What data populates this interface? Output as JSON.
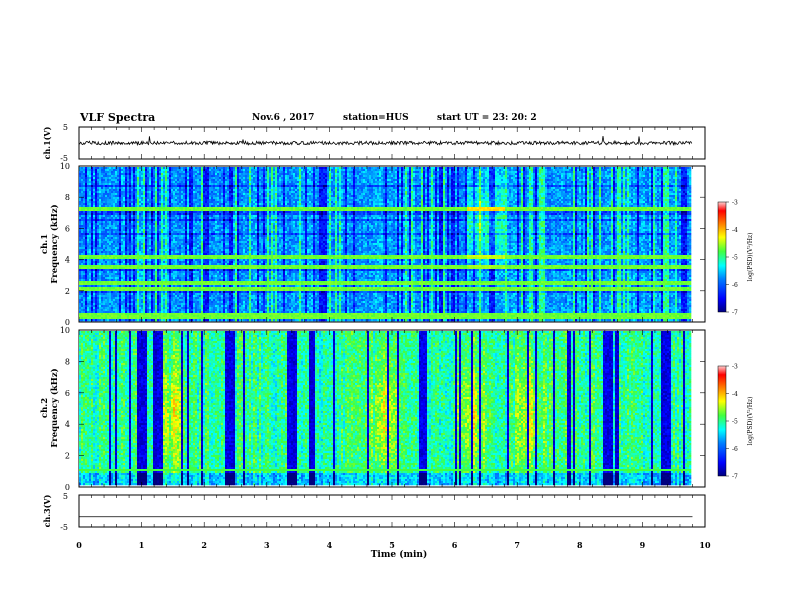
{
  "header": {
    "title": "VLF Spectra",
    "date": "Nov.6 , 2017",
    "station": "station=HUS",
    "start_ut": "start UT = 23: 20: 2"
  },
  "chart_data": [
    {
      "type": "line",
      "title": "",
      "ylabel": "ch.1(V)",
      "ylim": [
        -5,
        5
      ],
      "yticks": [
        "5",
        "-5"
      ],
      "xlim": [
        0,
        10
      ],
      "series": [
        {
          "baseline": 0
        }
      ]
    },
    {
      "type": "heatmap",
      "ylabel": "Frequency (kHz)",
      "ylabel_prefix": "ch.1",
      "ylim": [
        0,
        10
      ],
      "yticks": [
        "0",
        "2",
        "4",
        "6",
        "8",
        "10"
      ],
      "xlim": [
        0,
        9.8
      ],
      "colorbar": {
        "label": "log(PSD)(V²/Hz)",
        "range": [
          -7,
          -3
        ],
        "ticks": [
          "-3",
          "-4",
          "-5",
          "-6",
          "-7"
        ]
      },
      "seed": 11,
      "features": {
        "bands_khz": [
          2.1,
          2.5,
          3.5,
          4.2,
          7.3,
          0.2,
          0.4
        ],
        "bright_patch_min": [
          6.2,
          6.8
        ]
      }
    },
    {
      "type": "heatmap",
      "ylabel": "Frequency (kHz)",
      "ylabel_prefix": "ch.2",
      "ylim": [
        0,
        10
      ],
      "yticks": [
        "0",
        "2",
        "4",
        "6",
        "8",
        "10"
      ],
      "xlim": [
        0,
        9.8
      ],
      "colorbar": {
        "label": "log(PSD)(V²/Hz)",
        "range": [
          -7,
          -3
        ],
        "ticks": [
          "-3",
          "-4",
          "-5",
          "-6",
          "-7"
        ]
      },
      "seed": 29,
      "features": {
        "bright_bursts_min": [
          1.5,
          4.9,
          6.3,
          7.2
        ],
        "dark_gaps_min": [
          1.0,
          1.25,
          2.4,
          3.4,
          5.5,
          8.45,
          9.4
        ]
      }
    },
    {
      "type": "line",
      "ylabel": "ch.3(V)",
      "ylim": [
        -5,
        5
      ],
      "yticks": [
        "5",
        "-5"
      ],
      "xlim": [
        0,
        10
      ],
      "series": [
        {
          "baseline": -1.8
        }
      ]
    }
  ],
  "xaxis": {
    "label": "Time (min)",
    "ticks": [
      "0",
      "1",
      "2",
      "3",
      "4",
      "5",
      "6",
      "7",
      "8",
      "9",
      "10"
    ],
    "range": [
      0,
      10
    ]
  },
  "colors": {
    "frame": "#000000",
    "cmap": [
      "#00007f",
      "#0000ff",
      "#0080ff",
      "#00ffff",
      "#40ff40",
      "#ffff00",
      "#ff8000",
      "#ff0000",
      "#ffc0c0"
    ]
  }
}
